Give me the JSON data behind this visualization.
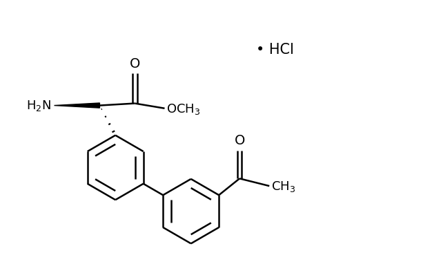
{
  "background_color": "#ffffff",
  "line_color": "#000000",
  "line_width": 1.8,
  "text_color": "#000000",
  "figsize": [
    6.1,
    3.95
  ],
  "dpi": 100,
  "xlim": [
    0,
    10
  ],
  "ylim": [
    0,
    6.5
  ]
}
